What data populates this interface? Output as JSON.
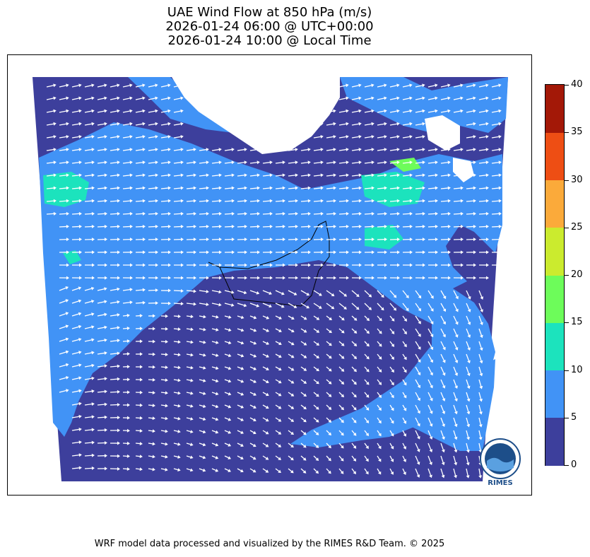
{
  "title": {
    "line1": "UAE Wind Flow at 850 hPa (m/s)",
    "line2": "2026-01-24 06:00 @ UTC+00:00",
    "line3": "2026-01-24 10:00 @ Local Time"
  },
  "colorbar": {
    "levels": [
      0,
      5,
      10,
      15,
      20,
      25,
      30,
      35,
      40
    ],
    "colors": [
      "#3d3f9c",
      "#4193f6",
      "#1ce3bd",
      "#6dfc5a",
      "#cbeb2e",
      "#fbaa3a",
      "#ee4e14",
      "#a31807"
    ],
    "labels": [
      "0",
      "5",
      "10",
      "15",
      "20",
      "25",
      "30",
      "35",
      "40"
    ]
  },
  "map": {
    "land_mask_color": "#ffffff",
    "arrow_color": "#ffffff",
    "border_color": "#000000"
  },
  "logo": {
    "text": "RIMES"
  },
  "footer": {
    "text": "WRF model data processed and visualized by the RIMES R&D Team. © 2025"
  }
}
